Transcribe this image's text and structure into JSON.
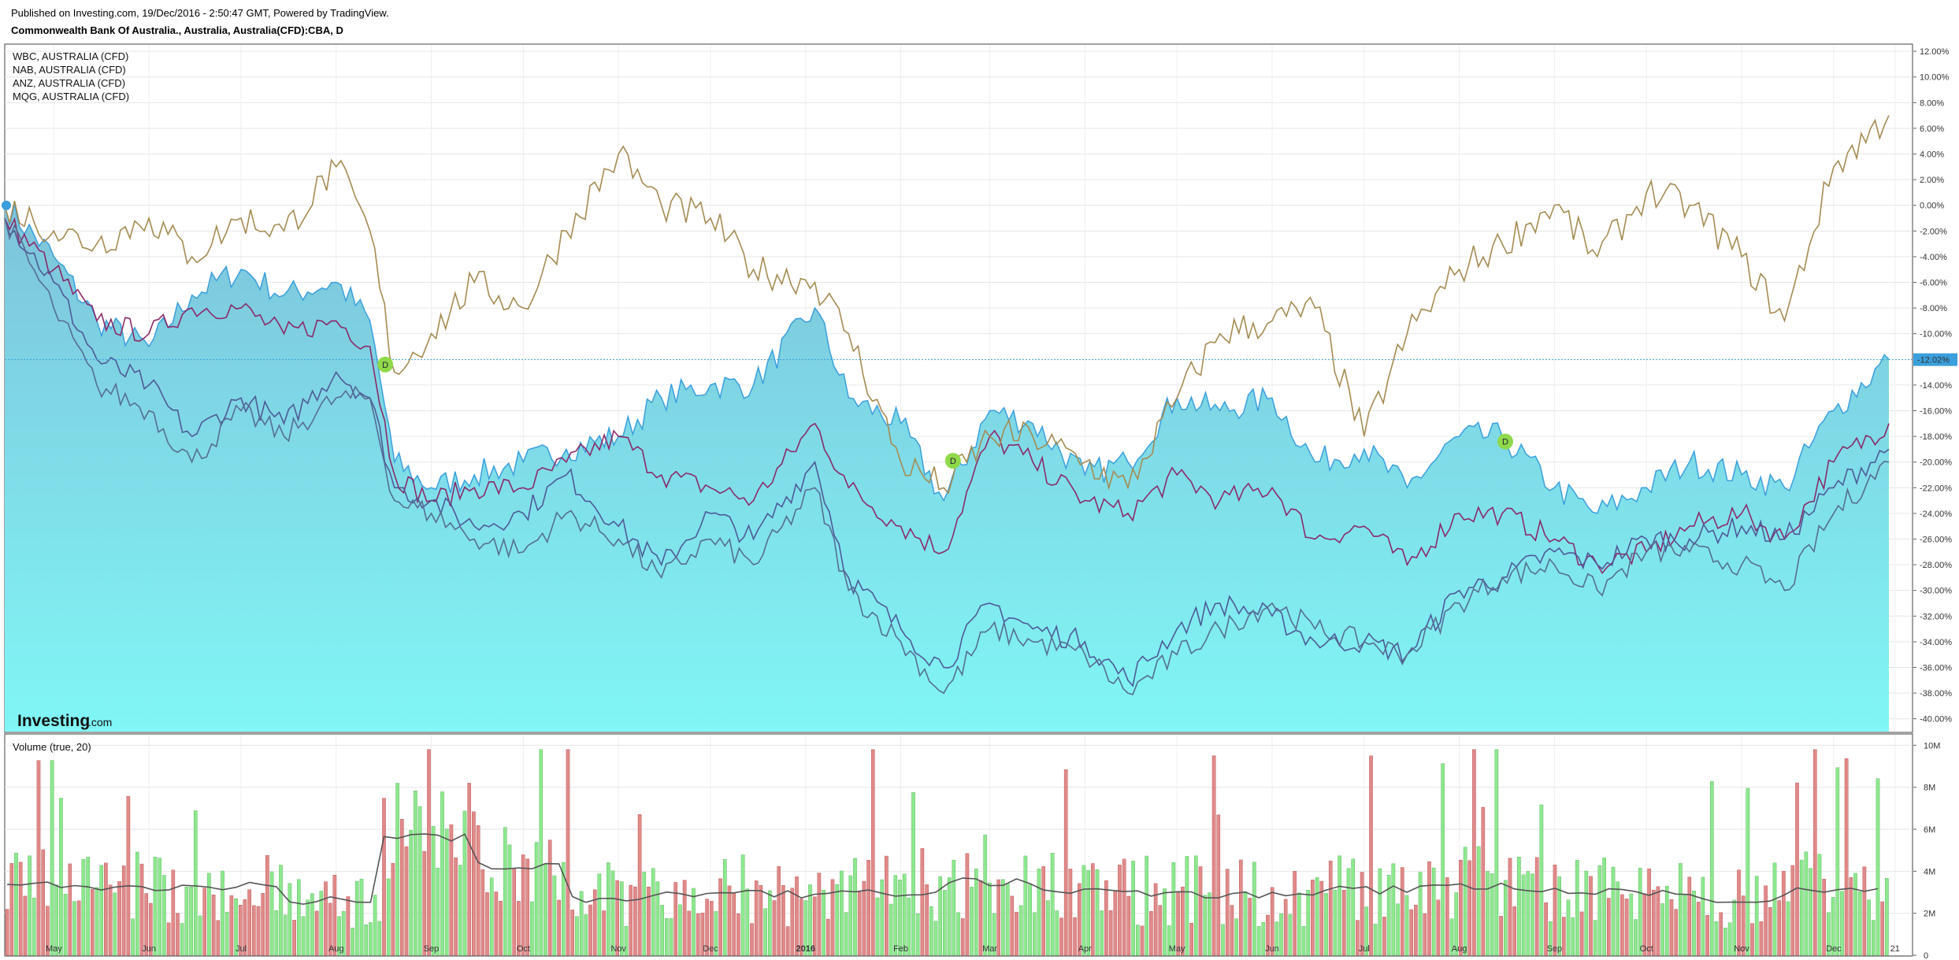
{
  "header": {
    "published": "Published on Investing.com, 19/Dec/2016 - 2:50:47 GMT, Powered by TradingView.",
    "title": "Commonwealth Bank Of Australia., Australia, Australia(CFD):CBA, D"
  },
  "logo": {
    "main": "Investing",
    "sub": ".com"
  },
  "colors": {
    "area_top": "#7ec3da",
    "area_bottom": "#80f6f6",
    "area_line": "#3a9fdc",
    "mqg": "#a58b52",
    "wbc": "#8a2a6a",
    "nab": "#4e5a96",
    "anz": "#566e92",
    "current_line": "#3a9fdc",
    "volume_up": "#8ee88e",
    "volume_down": "#e08a8a",
    "volume_ma": "#555555",
    "dividend": "#8fd94a"
  },
  "chart_data": [
    {
      "type": "line",
      "title": "Commonwealth Bank Of Australia., Australia, Australia(CFD):CBA, D",
      "y_unit": "%",
      "ylim": [
        -41,
        12.5
      ],
      "y_ticks": [
        12,
        10,
        8,
        6,
        4,
        2,
        0,
        -2,
        -4,
        -6,
        -8,
        -10,
        -14,
        -16,
        -18,
        -20,
        -22,
        -24,
        -26,
        -28,
        -30,
        -32,
        -34,
        -36,
        -38,
        -40
      ],
      "y_tick_labels": [
        "12.00%",
        "10.00%",
        "8.00%",
        "6.00%",
        "4.00%",
        "2.00%",
        "0.00%",
        "-2.00%",
        "-4.00%",
        "-6.00%",
        "-8.00%",
        "-10.00%",
        "-14.00%",
        "-16.00%",
        "-18.00%",
        "-20.00%",
        "-22.00%",
        "-24.00%",
        "-26.00%",
        "-28.00%",
        "-30.00%",
        "-32.00%",
        "-34.00%",
        "-36.00%",
        "-38.00%",
        "-40.00%"
      ],
      "current_value": -12.02,
      "current_label": "-12.02%",
      "x_labels": [
        "May",
        "Jun",
        "Jul",
        "Aug",
        "Sep",
        "Oct",
        "Nov",
        "Dec",
        "2016",
        "Feb",
        "Mar",
        "Apr",
        "May",
        "Jun",
        "Jul",
        "Aug",
        "Sep",
        "Oct",
        "Nov",
        "Dec",
        "21"
      ],
      "x_label_bold": "2016",
      "date_range": [
        "2015-04-15",
        "2016-12-19"
      ],
      "grid": true,
      "legend": [
        "WBC, AUSTRALIA (CFD)",
        "NAB, AUSTRALIA (CFD)",
        "ANZ, AUSTRALIA (CFD)",
        "MQG, AUSTRALIA (CFD)"
      ],
      "legend_position": "top-left",
      "dividend_marker": "D",
      "dividend_markers": [
        {
          "date": "2015-08-17",
          "value": -12.4
        },
        {
          "date": "2016-02-18",
          "value": -19.9
        },
        {
          "date": "2016-08-16",
          "value": -18.4
        }
      ],
      "series": [
        {
          "name": "CBA",
          "style": "area",
          "x": [
            "2015-04-15",
            "2015-05-01",
            "2015-05-15",
            "2015-06-01",
            "2015-06-15",
            "2015-07-01",
            "2015-07-15",
            "2015-08-01",
            "2015-08-12",
            "2015-08-20",
            "2015-09-01",
            "2015-09-15",
            "2015-10-01",
            "2015-10-15",
            "2015-11-01",
            "2015-11-15",
            "2015-12-01",
            "2015-12-15",
            "2016-01-04",
            "2016-01-15",
            "2016-02-01",
            "2016-02-15",
            "2016-03-01",
            "2016-03-15",
            "2016-04-01",
            "2016-04-15",
            "2016-05-01",
            "2016-05-15",
            "2016-06-01",
            "2016-06-15",
            "2016-07-01",
            "2016-07-15",
            "2016-08-01",
            "2016-08-15",
            "2016-09-01",
            "2016-09-15",
            "2016-10-01",
            "2016-10-15",
            "2016-11-01",
            "2016-11-15",
            "2016-12-01",
            "2016-12-19"
          ],
          "values": [
            0,
            -4,
            -9,
            -11,
            -7,
            -5,
            -7,
            -6,
            -9,
            -20,
            -22,
            -21,
            -20,
            -19,
            -18,
            -15,
            -14,
            -14,
            -8,
            -15,
            -17,
            -23,
            -16,
            -17,
            -21,
            -20,
            -15,
            -16,
            -15,
            -20,
            -19,
            -22,
            -18,
            -18,
            -22,
            -24,
            -22,
            -20,
            -21,
            -22,
            -16,
            -12
          ]
        },
        {
          "name": "WBC, AUSTRALIA (CFD)",
          "x": [
            "2015-04-15",
            "2015-05-01",
            "2015-05-15",
            "2015-06-01",
            "2015-06-15",
            "2015-07-01",
            "2015-07-15",
            "2015-08-01",
            "2015-08-12",
            "2015-08-20",
            "2015-09-01",
            "2015-09-15",
            "2015-10-01",
            "2015-10-15",
            "2015-11-01",
            "2015-11-15",
            "2015-12-01",
            "2015-12-15",
            "2016-01-04",
            "2016-01-15",
            "2016-02-01",
            "2016-02-15",
            "2016-03-01",
            "2016-03-15",
            "2016-04-01",
            "2016-04-15",
            "2016-05-01",
            "2016-05-15",
            "2016-06-01",
            "2016-06-15",
            "2016-07-01",
            "2016-07-15",
            "2016-08-01",
            "2016-08-15",
            "2016-09-01",
            "2016-09-15",
            "2016-10-01",
            "2016-10-15",
            "2016-11-01",
            "2016-11-15",
            "2016-12-01",
            "2016-12-19"
          ],
          "values": [
            -1,
            -5,
            -9,
            -10,
            -8,
            -8,
            -10,
            -9,
            -11,
            -21,
            -23,
            -22,
            -22,
            -20,
            -18,
            -21,
            -22,
            -23,
            -17,
            -22,
            -25,
            -27,
            -18,
            -20,
            -23,
            -24,
            -21,
            -23,
            -22,
            -26,
            -25,
            -28,
            -24,
            -24,
            -26,
            -28,
            -27,
            -25,
            -24,
            -26,
            -20,
            -17
          ]
        },
        {
          "name": "NAB, AUSTRALIA (CFD)",
          "x": [
            "2015-04-15",
            "2015-05-01",
            "2015-05-15",
            "2015-06-01",
            "2015-06-15",
            "2015-07-01",
            "2015-07-15",
            "2015-08-01",
            "2015-08-12",
            "2015-08-20",
            "2015-09-01",
            "2015-09-15",
            "2015-10-01",
            "2015-10-15",
            "2015-11-01",
            "2015-11-15",
            "2015-12-01",
            "2015-12-15",
            "2016-01-04",
            "2016-01-15",
            "2016-02-01",
            "2016-02-15",
            "2016-03-01",
            "2016-03-15",
            "2016-04-01",
            "2016-04-15",
            "2016-05-01",
            "2016-05-15",
            "2016-06-01",
            "2016-06-15",
            "2016-07-01",
            "2016-07-15",
            "2016-08-01",
            "2016-08-15",
            "2016-09-01",
            "2016-09-15",
            "2016-10-01",
            "2016-10-15",
            "2016-11-01",
            "2016-11-15",
            "2016-12-01",
            "2016-12-19"
          ],
          "values": [
            -1,
            -6,
            -12,
            -14,
            -18,
            -15,
            -17,
            -13,
            -15,
            -22,
            -23,
            -25,
            -24,
            -21,
            -25,
            -28,
            -24,
            -26,
            -20,
            -29,
            -33,
            -36,
            -31,
            -33,
            -34,
            -37,
            -33,
            -31,
            -32,
            -34,
            -34,
            -35,
            -30,
            -29,
            -27,
            -28,
            -26,
            -26,
            -25,
            -26,
            -22,
            -19
          ]
        },
        {
          "name": "ANZ, AUSTRALIA (CFD)",
          "x": [
            "2015-04-15",
            "2015-05-01",
            "2015-05-15",
            "2015-06-01",
            "2015-06-15",
            "2015-07-01",
            "2015-07-15",
            "2015-08-01",
            "2015-08-12",
            "2015-08-20",
            "2015-09-01",
            "2015-09-15",
            "2015-10-01",
            "2015-10-15",
            "2015-11-01",
            "2015-11-15",
            "2015-12-01",
            "2015-12-15",
            "2016-01-04",
            "2016-01-15",
            "2016-02-01",
            "2016-02-15",
            "2016-03-01",
            "2016-03-15",
            "2016-04-01",
            "2016-04-15",
            "2016-05-01",
            "2016-05-15",
            "2016-06-01",
            "2016-06-15",
            "2016-07-01",
            "2016-07-15",
            "2016-08-01",
            "2016-08-15",
            "2016-09-01",
            "2016-09-15",
            "2016-10-01",
            "2016-10-15",
            "2016-11-01",
            "2016-11-15",
            "2016-12-01",
            "2016-12-19"
          ],
          "values": [
            -1,
            -8,
            -14,
            -16,
            -20,
            -16,
            -18,
            -15,
            -15,
            -23,
            -24,
            -26,
            -27,
            -24,
            -26,
            -29,
            -26,
            -28,
            -22,
            -30,
            -34,
            -38,
            -33,
            -34,
            -35,
            -38,
            -35,
            -33,
            -31,
            -33,
            -34,
            -35,
            -31,
            -29,
            -28,
            -30,
            -27,
            -27,
            -28,
            -30,
            -24,
            -20
          ]
        },
        {
          "name": "MQG, AUSTRALIA (CFD)",
          "x": [
            "2015-04-15",
            "2015-05-01",
            "2015-05-15",
            "2015-06-01",
            "2015-06-15",
            "2015-07-01",
            "2015-07-15",
            "2015-08-01",
            "2015-08-12",
            "2015-08-20",
            "2015-09-01",
            "2015-09-15",
            "2015-10-01",
            "2015-10-15",
            "2015-11-01",
            "2015-11-15",
            "2015-12-01",
            "2015-12-15",
            "2016-01-04",
            "2016-01-15",
            "2016-02-01",
            "2016-02-15",
            "2016-03-01",
            "2016-03-15",
            "2016-04-01",
            "2016-04-15",
            "2016-05-01",
            "2016-05-15",
            "2016-06-01",
            "2016-06-15",
            "2016-07-01",
            "2016-07-15",
            "2016-08-01",
            "2016-08-15",
            "2016-09-01",
            "2016-09-15",
            "2016-10-01",
            "2016-10-15",
            "2016-11-01",
            "2016-11-15",
            "2016-12-01",
            "2016-12-19"
          ],
          "values": [
            0,
            -2,
            -3,
            -1,
            -4,
            -1,
            -2,
            3,
            -2,
            -13,
            -10,
            -6,
            -8,
            -2,
            4,
            0,
            -1,
            -5,
            -6,
            -10,
            -20,
            -22,
            -18,
            -18,
            -20,
            -22,
            -15,
            -10,
            -9,
            -8,
            -18,
            -10,
            -5,
            -3,
            0,
            -4,
            1,
            0,
            -4,
            -9,
            3,
            7
          ]
        }
      ]
    },
    {
      "type": "bar",
      "title": "Volume (true, 20)",
      "y_ticks": [
        0,
        2000000,
        4000000,
        6000000,
        8000000,
        10000000
      ],
      "y_tick_labels": [
        "0",
        "2M",
        "4M",
        "6M",
        "8M",
        "10M"
      ],
      "ylim": [
        0,
        10500000
      ],
      "legend_position": "top-left",
      "series": [
        {
          "name": "Volume",
          "months": [
            "May",
            "Jun",
            "Jul",
            "Aug",
            "Sep",
            "Oct",
            "Nov",
            "Dec",
            "2016",
            "Feb",
            "Mar",
            "Apr",
            "May",
            "Jun",
            "Jul",
            "Aug",
            "Sep",
            "Oct",
            "Nov",
            "Dec"
          ],
          "values": [
            3400000,
            3200000,
            3100000,
            2700000,
            5400000,
            4200000,
            2900000,
            3100000,
            2800000,
            3300000,
            3800000,
            3300000,
            3100000,
            3000000,
            3200000,
            3400000,
            3100000,
            3000000,
            2900000,
            3500000
          ]
        },
        {
          "name": "MA 20",
          "values": [
            3300000,
            3200000,
            3300000,
            2600000,
            5600000,
            4300000,
            2700000,
            2900000,
            2900000,
            3000000,
            3500000,
            3100000,
            2900000,
            2900000,
            3100000,
            3300000,
            3100000,
            3000000,
            2700000,
            3100000
          ]
        }
      ]
    }
  ]
}
